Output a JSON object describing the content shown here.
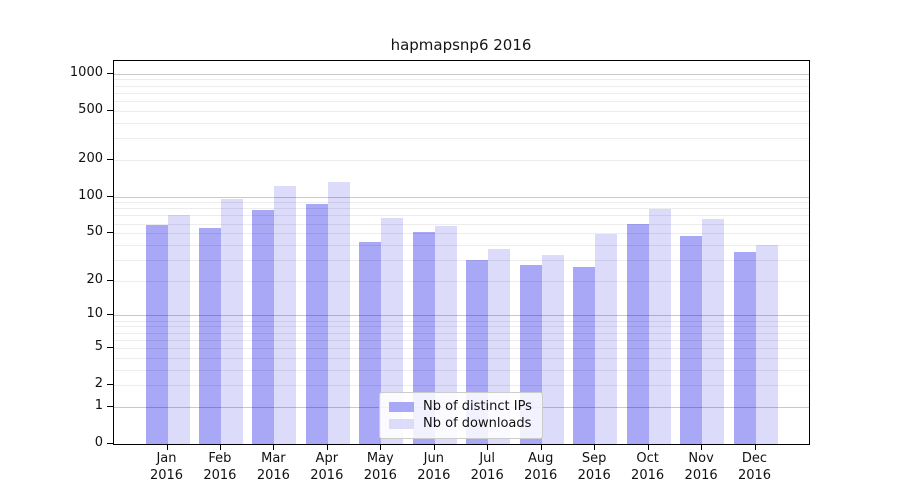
{
  "chart_data": {
    "type": "bar",
    "title": "hapmapsnp6 2016",
    "year_label": "2016",
    "categories": [
      "Jan",
      "Feb",
      "Mar",
      "Apr",
      "May",
      "Jun",
      "Jul",
      "Aug",
      "Sep",
      "Oct",
      "Nov",
      "Dec"
    ],
    "series": [
      {
        "name": "Nb of distinct IPs",
        "color": "#a8a8f6",
        "values": [
          58,
          55,
          77,
          87,
          42,
          51,
          30,
          27,
          26,
          59,
          47,
          35
        ]
      },
      {
        "name": "Nb of downloads",
        "color": "#dcdcfa",
        "values": [
          70,
          95,
          122,
          132,
          67,
          57,
          37,
          33,
          49,
          79,
          65,
          40
        ]
      }
    ],
    "y_ticks": [
      1000,
      500,
      200,
      100,
      50,
      20,
      10,
      5,
      2,
      1,
      0
    ],
    "y_major_gridlines": [
      1,
      10,
      100,
      1000
    ],
    "y_minor_gridlines": [
      2,
      3,
      4,
      5,
      6,
      7,
      8,
      9,
      20,
      30,
      40,
      50,
      60,
      70,
      80,
      90,
      200,
      300,
      400,
      500,
      600,
      700,
      800,
      900
    ],
    "scale": "log10(1+x)",
    "ylim": [
      0,
      1260
    ],
    "grid": true,
    "legend_position": "lower center"
  }
}
